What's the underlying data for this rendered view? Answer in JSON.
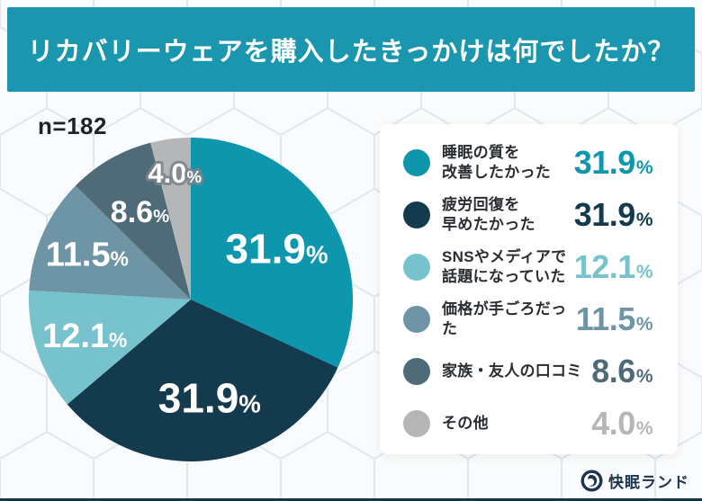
{
  "header": {
    "title": "リカバリーウェアを購入したきっかけは何でしたか？",
    "background": "#1A96AE"
  },
  "sample_size": "n=182",
  "chart_data": {
    "type": "pie",
    "title": "リカバリーウェアを購入したきっかけは何でしたか？",
    "sample_size": "n=182",
    "start_angle_deg": 0,
    "direction": "clockwise",
    "categories": [
      "睡眠の質を改善したかった",
      "疲労回復を早めたかった",
      "SNSやメディアで話題になっていた",
      "価格が手ごろだった",
      "家族・友人の口コミ",
      "その他"
    ],
    "values": [
      31.9,
      31.9,
      12.1,
      11.5,
      8.6,
      4.0
    ],
    "value_labels": [
      "31.9",
      "31.9",
      "12.1",
      "11.5",
      "8.6",
      "4.0"
    ],
    "unit": "%",
    "colors": [
      "#0E96AD",
      "#143A4E",
      "#76C3CD",
      "#6E95A6",
      "#4F6B78",
      "#B5B6B8"
    ],
    "legend_position": "right",
    "label_layout": {
      "r_fraction": [
        0.59,
        0.61,
        0.69,
        0.7,
        0.63,
        0.79
      ],
      "font_size": [
        46,
        46,
        38,
        38,
        34,
        31
      ],
      "dx": [
        6,
        6,
        0,
        0,
        0,
        0
      ],
      "halo_indices": [
        5
      ]
    }
  },
  "legend": {
    "items": [
      {
        "label": "睡眠の質を\n改善したかった",
        "value": "31.9",
        "unit": "%",
        "color": "#0E96AD"
      },
      {
        "label": "疲労回復を\n早めたかった",
        "value": "31.9",
        "unit": "%",
        "color": "#143A4E"
      },
      {
        "label": "SNSやメディアで\n話題になっていた",
        "value": "12.1",
        "unit": "%",
        "color": "#76C3CD"
      },
      {
        "label": "価格が手ごろだった",
        "value": "11.5",
        "unit": "%",
        "color": "#6E95A6"
      },
      {
        "label": "家族・友人の口コミ",
        "value": "8.6",
        "unit": "%",
        "color": "#4F6B78"
      },
      {
        "label": "その他",
        "value": "4.0",
        "unit": "%",
        "color": "#B5B6B8"
      }
    ]
  },
  "footer": {
    "brand": "快眠ランド",
    "icon": "moon-swirl-badge",
    "bar_color": "#14384C"
  }
}
